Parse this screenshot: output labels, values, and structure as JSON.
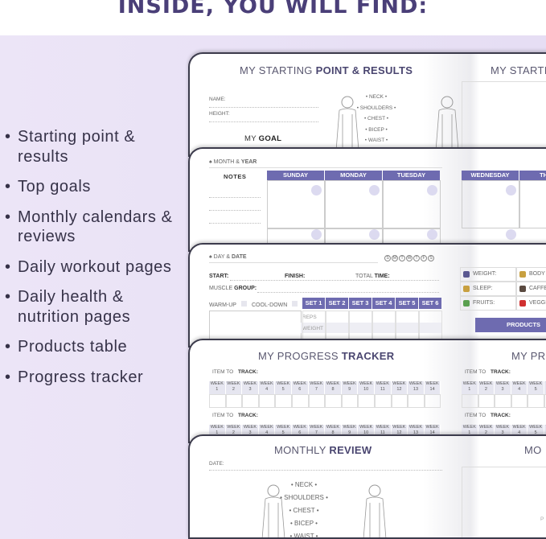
{
  "header": {
    "title": "INSIDE, YOU WILL FIND:"
  },
  "features": [
    "Starting point & results",
    "Top goals",
    "Monthly calendars & reviews",
    "Daily workout pages",
    "Daily health & nutrition pages",
    "Products table",
    "Progress tracker"
  ],
  "colors": {
    "accent": "#6e6bb0",
    "title": "#4a3f78",
    "background": "#ece5f7"
  },
  "page1": {
    "title_light": "MY STARTING ",
    "title_bold": "POINT & RESULTS",
    "right_title": "MY STARTI",
    "name": "NAME:",
    "height": "HEIGHT:",
    "goal_light": "MY ",
    "goal_bold": "GOAL",
    "measurements": [
      "NECK",
      "SHOULDERS",
      "CHEST",
      "BICEP",
      "WAIST"
    ]
  },
  "page2": {
    "month_light": "MONTH & ",
    "month_bold": "YEAR",
    "notes": "NOTES",
    "days": [
      "SUNDAY",
      "MONDAY",
      "TUESDAY"
    ],
    "right_days": [
      "WEDNESDAY",
      "THUR"
    ]
  },
  "page3": {
    "day_light": "DAY & ",
    "day_bold": "DATE",
    "weekdays": [
      "S",
      "M",
      "T",
      "W",
      "T",
      "F",
      "S"
    ],
    "start": "START:",
    "finish": "FINISH:",
    "total_light": "TOTAL ",
    "total_bold": "TIME:",
    "muscle_light": "MUSCLE ",
    "muscle_bold": "GROUP:",
    "warmup": "WARM-UP",
    "cooldown": "COOL-DOWN",
    "sets": [
      "SET 1",
      "SET 2",
      "SET 3",
      "SET 4",
      "SET 5",
      "SET 6"
    ],
    "rows": [
      "REPS",
      "WEIGHT"
    ],
    "health": [
      "WEIGHT:",
      "BODY F",
      "SLEEP:",
      "CAFFEI",
      "FRUITS:",
      "VEGGIE"
    ],
    "products": "PRODUCTS"
  },
  "page4": {
    "title_light": "MY PROGRESS ",
    "title_bold": "TRACKER",
    "right_title": "MY PRO",
    "item_light": "ITEM TO ",
    "item_bold": "TRACK:",
    "week": "WEEK",
    "weeks": [
      "1",
      "2",
      "3",
      "4",
      "5",
      "6",
      "7",
      "8",
      "9",
      "10",
      "11",
      "12",
      "13",
      "14"
    ]
  },
  "page5": {
    "title_light": "MONTHLY ",
    "title_bold": "REVIEW",
    "right_title": "MO",
    "date": "DATE:",
    "measurements": [
      "NECK",
      "SHOULDERS",
      "CHEST",
      "BICEP",
      "WAIST"
    ],
    "right_label": "P"
  }
}
